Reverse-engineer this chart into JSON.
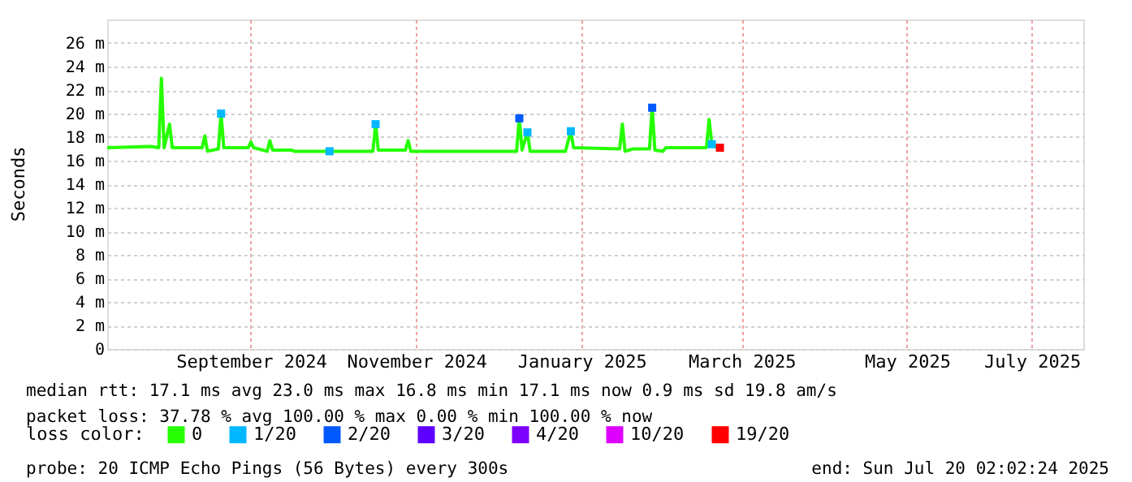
{
  "chart_data": {
    "type": "line",
    "ylabel": "Seconds",
    "xlim": [
      "2024-07-25",
      "2025-07-20"
    ],
    "xticks": [
      {
        "value": "2024-09-16",
        "label": "September 2024"
      },
      {
        "value": "2024-11-16",
        "label": "November 2024"
      },
      {
        "value": "2025-01-16",
        "label": "January 2025"
      },
      {
        "value": "2025-03-16",
        "label": "March 2025"
      },
      {
        "value": "2025-05-16",
        "label": "May 2025"
      },
      {
        "value": "2025-07-01",
        "label": "July 2025"
      }
    ],
    "ylim": [
      0,
      28
    ],
    "yticks": [
      0,
      {
        "value": 2,
        "label": "2 m"
      },
      {
        "value": 4,
        "label": "4 m"
      },
      {
        "value": 6,
        "label": "6 m"
      },
      {
        "value": 8,
        "label": "8 m"
      },
      {
        "value": 10,
        "label": "10 m"
      },
      {
        "value": 12,
        "label": "12 m"
      },
      {
        "value": 14,
        "label": "14 m"
      },
      {
        "value": 16,
        "label": "16 m"
      },
      {
        "value": 18,
        "label": "18 m"
      },
      {
        "value": 20,
        "label": "20 m"
      },
      {
        "value": 22,
        "label": "22 m"
      },
      {
        "value": 24,
        "label": "24 m"
      },
      {
        "value": 26,
        "label": "26 m"
      }
    ],
    "grid": true,
    "legend": "bottom",
    "legend_title": "loss color:",
    "series": [
      {
        "name": "0",
        "color": "#26ff00",
        "x": [
          "2024-07-25",
          "2024-08-10",
          "2024-08-13",
          "2024-08-14",
          "2024-08-15",
          "2024-08-17",
          "2024-08-18",
          "2024-08-29",
          "2024-08-30",
          "2024-08-31",
          "2024-09-04",
          "2024-09-05",
          "2024-09-06",
          "2024-09-15",
          "2024-09-16",
          "2024-09-17",
          "2024-09-22",
          "2024-09-23",
          "2024-09-24",
          "2024-10-01",
          "2024-10-02",
          "2024-10-31",
          "2024-11-01",
          "2024-11-02",
          "2024-11-12",
          "2024-11-13",
          "2024-11-14",
          "2024-12-23",
          "2024-12-24",
          "2024-12-25",
          "2024-12-27",
          "2024-12-28",
          "2025-01-10",
          "2025-01-12",
          "2025-01-13",
          "2025-01-30",
          "2025-01-31",
          "2025-02-01",
          "2025-02-04",
          "2025-02-10",
          "2025-02-11",
          "2025-02-12",
          "2025-02-15",
          "2025-02-16",
          "2025-03-03",
          "2025-03-04",
          "2025-03-05",
          "2025-03-07"
        ],
        "values": [
          17.1,
          17.2,
          17.1,
          23.0,
          17.1,
          19.1,
          17.1,
          17.1,
          18.1,
          16.8,
          17.0,
          20.0,
          17.1,
          17.1,
          17.6,
          17.1,
          16.8,
          17.7,
          16.9,
          16.9,
          16.8,
          16.8,
          19.1,
          16.9,
          16.9,
          17.7,
          16.8,
          16.8,
          19.6,
          16.9,
          18.4,
          16.8,
          16.8,
          18.5,
          17.1,
          17.0,
          19.1,
          16.8,
          17.0,
          17.0,
          20.5,
          16.9,
          16.8,
          17.1,
          17.1,
          19.5,
          17.4,
          17.1
        ]
      },
      {
        "name": "1/20",
        "type": "scatter",
        "marker": "square",
        "color": "#00b8ff",
        "x": [
          "2024-09-05",
          "2024-10-15",
          "2024-11-01",
          "2024-12-27",
          "2025-01-12",
          "2025-03-05"
        ],
        "values": [
          20.0,
          16.8,
          19.1,
          18.4,
          18.5,
          17.4
        ]
      },
      {
        "name": "2/20",
        "type": "scatter",
        "marker": "square",
        "color": "#0059ff",
        "x": [
          "2024-12-24",
          "2025-02-11"
        ],
        "values": [
          19.6,
          20.5
        ]
      },
      {
        "name": "3/20",
        "type": "scatter",
        "color": "#5e00ff"
      },
      {
        "name": "4/20",
        "type": "scatter",
        "color": "#7e00ff"
      },
      {
        "name": "10/20",
        "type": "scatter",
        "color": "#dd00ff"
      },
      {
        "name": "19/20",
        "type": "scatter",
        "marker": "square",
        "color": "#ff0000",
        "x": [
          "2025-03-08"
        ],
        "values": [
          17.1
        ]
      }
    ],
    "annotations": [
      "median rtt:  17.1 ms avg  23.0 ms max  16.8 ms min  17.1 ms now  0.9 ms sd  19.8   am/s",
      "packet loss: 37.78 % avg  100.00 % max  0.00 % min  100.00 % now",
      "probe:       20 ICMP Echo Pings (56 Bytes) every 300s",
      "end: Sun Jul 20 02:02:24 2025"
    ]
  }
}
